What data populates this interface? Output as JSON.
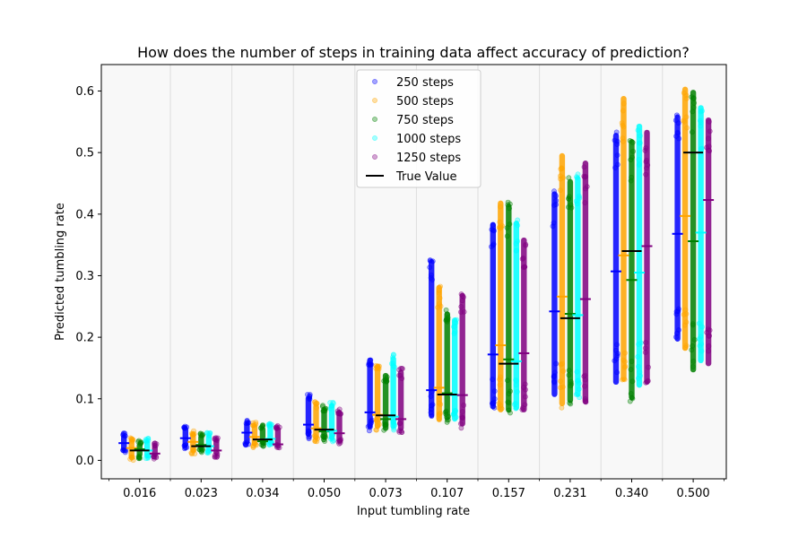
{
  "chart_data": {
    "type": "scatter",
    "title": "How does the number of steps in training data affect accuracy of prediction?",
    "xlabel": "Input tumbling rate",
    "ylabel": "Predicted tumbling rate",
    "categories": [
      "0.016",
      "0.023",
      "0.034",
      "0.050",
      "0.073",
      "0.107",
      "0.157",
      "0.231",
      "0.340",
      "0.500"
    ],
    "true_values": [
      0.016,
      0.023,
      0.034,
      0.05,
      0.073,
      0.107,
      0.157,
      0.231,
      0.34,
      0.5
    ],
    "ylim": [
      -0.03,
      0.643
    ],
    "yticks": [
      "0.0",
      "0.1",
      "0.2",
      "0.3",
      "0.4",
      "0.5",
      "0.6"
    ],
    "ytick_values": [
      0,
      0.1,
      0.2,
      0.3,
      0.4,
      0.5,
      0.6
    ],
    "legend_position": "top-center",
    "series": [
      {
        "name": "250 steps",
        "color": "#0000ff",
        "mins": [
          0.012,
          0.018,
          0.023,
          0.035,
          0.048,
          0.066,
          0.08,
          0.1,
          0.12,
          0.19
        ],
        "maxs": [
          0.045,
          0.058,
          0.065,
          0.108,
          0.17,
          0.33,
          0.39,
          0.44,
          0.535,
          0.565
        ],
        "means": [
          0.028,
          0.036,
          0.045,
          0.058,
          0.078,
          0.114,
          0.172,
          0.242,
          0.307,
          0.368
        ]
      },
      {
        "name": "500 steps",
        "color": "#ffa500",
        "mins": [
          0.0,
          0.01,
          0.02,
          0.03,
          0.048,
          0.06,
          0.075,
          0.085,
          0.125,
          0.175
        ],
        "maxs": [
          0.038,
          0.048,
          0.062,
          0.095,
          0.16,
          0.288,
          0.425,
          0.502,
          0.595,
          0.61
        ],
        "means": [
          0.02,
          0.03,
          0.038,
          0.052,
          0.074,
          0.118,
          0.187,
          0.266,
          0.333,
          0.397
        ]
      },
      {
        "name": "750 steps",
        "color": "#008000",
        "mins": [
          0.002,
          0.012,
          0.022,
          0.03,
          0.045,
          0.062,
          0.075,
          0.09,
          0.095,
          0.14
        ],
        "maxs": [
          0.032,
          0.045,
          0.058,
          0.09,
          0.145,
          0.245,
          0.42,
          0.46,
          0.525,
          0.605
        ],
        "means": [
          0.018,
          0.025,
          0.031,
          0.047,
          0.067,
          0.109,
          0.164,
          0.238,
          0.293,
          0.356
        ]
      },
      {
        "name": "1000 steps",
        "color": "#00ffff",
        "mins": [
          0.002,
          0.012,
          0.022,
          0.03,
          0.048,
          0.06,
          0.078,
          0.1,
          0.115,
          0.155
        ],
        "maxs": [
          0.036,
          0.045,
          0.063,
          0.095,
          0.172,
          0.235,
          0.392,
          0.465,
          0.55,
          0.58
        ],
        "means": [
          0.016,
          0.023,
          0.035,
          0.048,
          0.071,
          0.106,
          0.161,
          0.236,
          0.305,
          0.37
        ]
      },
      {
        "name": "1250 steps",
        "color": "#800080",
        "mins": [
          0.002,
          0.005,
          0.02,
          0.025,
          0.045,
          0.052,
          0.075,
          0.088,
          0.12,
          0.15
        ],
        "maxs": [
          0.028,
          0.038,
          0.058,
          0.085,
          0.15,
          0.275,
          0.365,
          0.49,
          0.54,
          0.56
        ],
        "means": [
          0.011,
          0.016,
          0.026,
          0.044,
          0.067,
          0.106,
          0.174,
          0.262,
          0.348,
          0.423
        ]
      }
    ],
    "true_value_label": "True Value"
  }
}
